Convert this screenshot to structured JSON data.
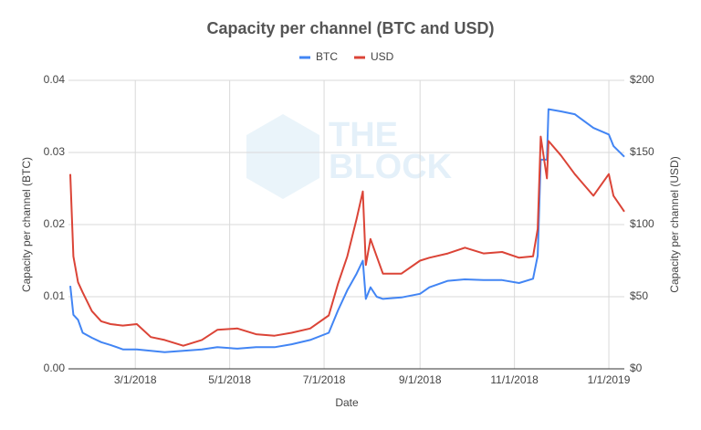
{
  "chart_data": {
    "type": "line",
    "title": "Capacity per channel (BTC and USD)",
    "xlabel": "Date",
    "ylabel": "Capacity per channel (BTC)",
    "y2label": "Capacity per channel (USD)",
    "annotations": [
      "THE",
      "BLOCK"
    ],
    "x": [
      "2018-01-18",
      "2018-01-20",
      "2018-01-23",
      "2018-01-26",
      "2018-02-01",
      "2018-02-07",
      "2018-02-13",
      "2018-02-21",
      "2018-03-02",
      "2018-03-11",
      "2018-03-20",
      "2018-04-01",
      "2018-04-13",
      "2018-04-23",
      "2018-05-06",
      "2018-05-18",
      "2018-05-30",
      "2018-06-10",
      "2018-06-22",
      "2018-07-04",
      "2018-07-10",
      "2018-07-16",
      "2018-07-22",
      "2018-07-26",
      "2018-07-28",
      "2018-07-31",
      "2018-08-04",
      "2018-08-08",
      "2018-08-20",
      "2018-09-01",
      "2018-09-07",
      "2018-09-19",
      "2018-09-30",
      "2018-10-12",
      "2018-10-24",
      "2018-11-04",
      "2018-11-13",
      "2018-11-16",
      "2018-11-18",
      "2018-11-22",
      "2018-11-23",
      "2018-12-01",
      "2018-12-10",
      "2018-12-22",
      "2019-01-01",
      "2019-01-04",
      "2019-01-11"
    ],
    "series": [
      {
        "name": "BTC",
        "color": "#4285f4",
        "axis": "y",
        "values": [
          0.0115,
          0.0075,
          0.0068,
          0.005,
          0.0043,
          0.0037,
          0.0033,
          0.0027,
          0.0027,
          0.0025,
          0.0023,
          0.0025,
          0.0027,
          0.003,
          0.0028,
          0.003,
          0.003,
          0.0034,
          0.004,
          0.005,
          0.0081,
          0.0109,
          0.0132,
          0.015,
          0.0097,
          0.0113,
          0.01,
          0.0097,
          0.0099,
          0.0104,
          0.0113,
          0.0122,
          0.0124,
          0.0123,
          0.0123,
          0.0119,
          0.0125,
          0.0157,
          0.029,
          0.029,
          0.036,
          0.0357,
          0.0353,
          0.0334,
          0.0325,
          0.0309,
          0.0294
        ]
      },
      {
        "name": "USD",
        "color": "#db4437",
        "axis": "y2",
        "values": [
          135,
          78,
          60,
          53,
          40,
          33,
          31,
          30,
          31,
          22,
          20,
          16,
          20,
          27,
          28,
          24,
          23,
          25,
          28,
          37,
          59,
          78,
          104,
          123,
          72,
          90,
          78,
          66,
          66,
          75,
          77,
          80,
          84,
          80,
          81,
          77,
          78,
          97,
          161,
          132,
          158,
          148,
          135,
          120,
          135,
          120,
          109
        ]
      }
    ],
    "xlim": [
      "2018-01-18",
      "2019-01-11"
    ],
    "xticks": [
      {
        "value": "2018-03-01",
        "label": "3/1/2018"
      },
      {
        "value": "2018-05-01",
        "label": "5/1/2018"
      },
      {
        "value": "2018-07-01",
        "label": "7/1/2018"
      },
      {
        "value": "2018-09-01",
        "label": "9/1/2018"
      },
      {
        "value": "2018-11-01",
        "label": "11/1/2018"
      },
      {
        "value": "2019-01-01",
        "label": "1/1/2019"
      }
    ],
    "ylim": [
      0,
      0.04
    ],
    "yticks": [
      {
        "value": 0,
        "label": "0.00"
      },
      {
        "value": 0.01,
        "label": "0.01"
      },
      {
        "value": 0.02,
        "label": "0.02"
      },
      {
        "value": 0.03,
        "label": "0.03"
      },
      {
        "value": 0.04,
        "label": "0.04"
      }
    ],
    "y2lim": [
      0,
      200
    ],
    "y2ticks": [
      {
        "value": 0,
        "label": "$0"
      },
      {
        "value": 50,
        "label": "$50"
      },
      {
        "value": 100,
        "label": "$100"
      },
      {
        "value": 150,
        "label": "$150"
      },
      {
        "value": 200,
        "label": "$200"
      }
    ],
    "grid": true,
    "legend": "top"
  }
}
